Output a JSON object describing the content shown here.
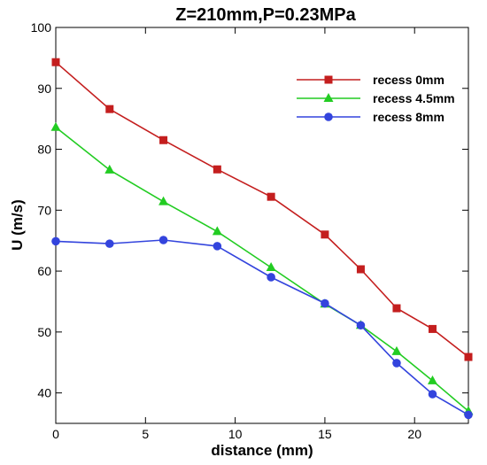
{
  "chart_data": {
    "type": "line",
    "title": "Z=210mm,P=0.23MPa",
    "xlabel": "distance (mm)",
    "ylabel": "U (m/s)",
    "xlim": [
      0,
      23
    ],
    "ylim": [
      35,
      100
    ],
    "xticks": [
      0,
      5,
      10,
      15,
      20
    ],
    "yticks": [
      40,
      50,
      60,
      70,
      80,
      90,
      100
    ],
    "grid": false,
    "legend_position": "top-right",
    "series": [
      {
        "name": "recess 0mm",
        "color": "#c41e1e",
        "marker": "square",
        "x": [
          0,
          3,
          6,
          9,
          12,
          15,
          17,
          19,
          21,
          23
        ],
        "y": [
          94.3,
          86.6,
          81.5,
          76.7,
          72.2,
          66.0,
          60.3,
          53.9,
          50.5,
          45.9
        ]
      },
      {
        "name": "recess 4.5mm",
        "color": "#22cc22",
        "marker": "triangle",
        "x": [
          0,
          3,
          6,
          9,
          12,
          15,
          17,
          19,
          21,
          23
        ],
        "y": [
          83.6,
          76.6,
          71.4,
          66.5,
          60.6,
          54.6,
          51.1,
          46.8,
          42.0,
          37.0
        ]
      },
      {
        "name": "recess 8mm",
        "color": "#3344dd",
        "marker": "circle",
        "x": [
          0,
          3,
          6,
          9,
          12,
          15,
          17,
          19,
          21,
          23
        ],
        "y": [
          64.9,
          64.5,
          65.1,
          64.1,
          59.0,
          54.7,
          51.1,
          44.9,
          39.8,
          36.4
        ]
      }
    ]
  }
}
